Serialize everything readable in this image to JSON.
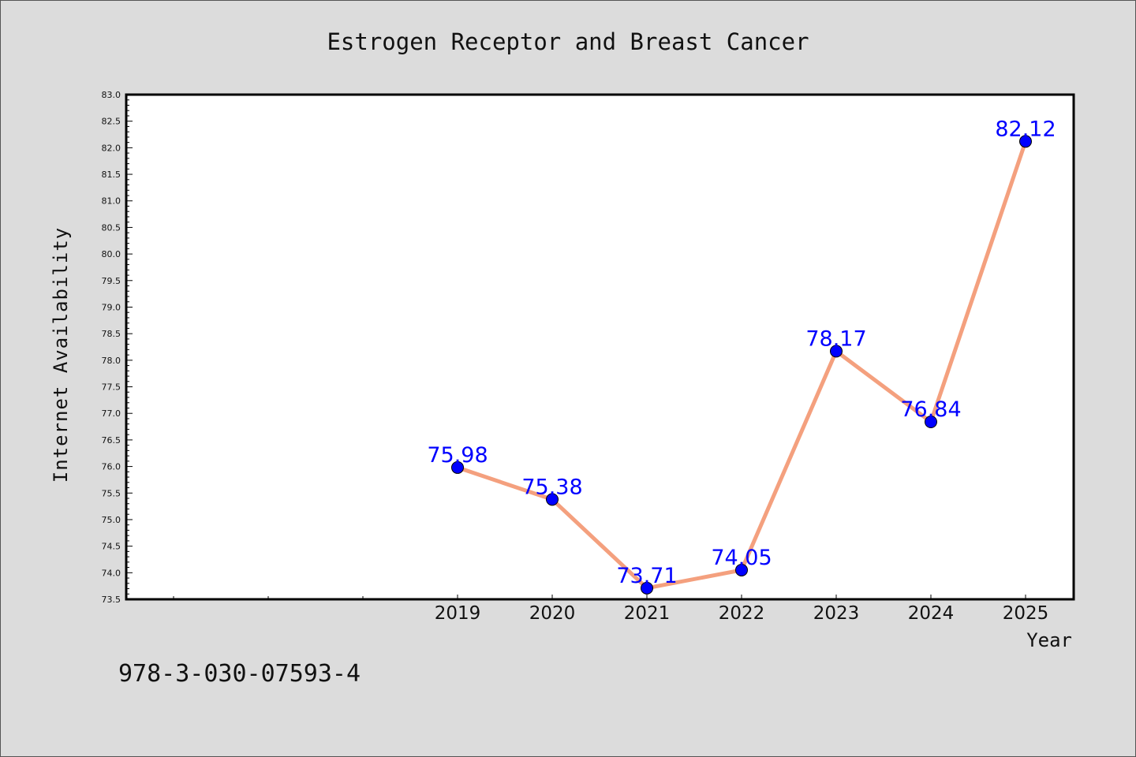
{
  "chart_data": {
    "type": "line",
    "title": "Estrogen Receptor and Breast Cancer",
    "xlabel": "Year",
    "ylabel": "Internet Availability",
    "categories": [
      "2019",
      "2020",
      "2021",
      "2022",
      "2023",
      "2024",
      "2025"
    ],
    "values": [
      75.98,
      75.38,
      73.71,
      74.05,
      78.17,
      76.84,
      82.12
    ],
    "data_labels": [
      "75.98",
      "75.38",
      "73.71",
      "74.05",
      "78.17",
      "76.84",
      "82.12"
    ],
    "ylim": [
      73.5,
      83.0
    ],
    "yticks": [
      "73.5",
      "74.0",
      "74.5",
      "75.0",
      "75.5",
      "76.0",
      "76.5",
      "77.0",
      "77.5",
      "78.0",
      "78.5",
      "79.0",
      "79.5",
      "80.0",
      "80.5",
      "81.0",
      "81.5",
      "82.0",
      "82.5",
      "83.0"
    ],
    "grid": false,
    "line_color": "#f4a07e",
    "marker_color": "#0000ff",
    "label_color": "#0000ff"
  },
  "footer": {
    "text": "978-3-030-07593-4"
  }
}
